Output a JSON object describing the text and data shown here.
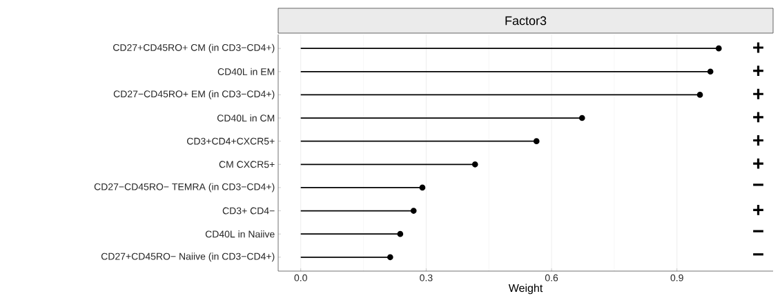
{
  "chart_data": {
    "type": "lollipop",
    "orientation": "horizontal",
    "title": "Factor3",
    "xlabel": "Weight",
    "categories": [
      "CD27+CD45RO+ CM (in CD3−CD4+)",
      "CD40L in EM",
      "CD27−CD45RO+ EM (in CD3−CD4+)",
      "CD40L in CM",
      "CD3+CD4+CXCR5+",
      "CM CXCR5+",
      "CD27−CD45RO− TEMRA (in CD3−CD4+)",
      "CD3+ CD4−",
      "CD40L in Naiive",
      "CD27+CD45RO− Naiive (in CD3−CD4+)"
    ],
    "values": [
      1.0,
      0.98,
      0.955,
      0.673,
      0.564,
      0.417,
      0.291,
      0.27,
      0.238,
      0.214
    ],
    "annotations": [
      "+",
      "+",
      "+",
      "+",
      "+",
      "+",
      "−",
      "+",
      "−",
      "−"
    ],
    "color": "#000000",
    "marker": "circle",
    "grid": "x",
    "xlim": [
      -0.054,
      1.13
    ],
    "xticks": [
      {
        "value": 0,
        "label": "0.0"
      },
      0.3,
      0.6,
      0.9
    ]
  }
}
